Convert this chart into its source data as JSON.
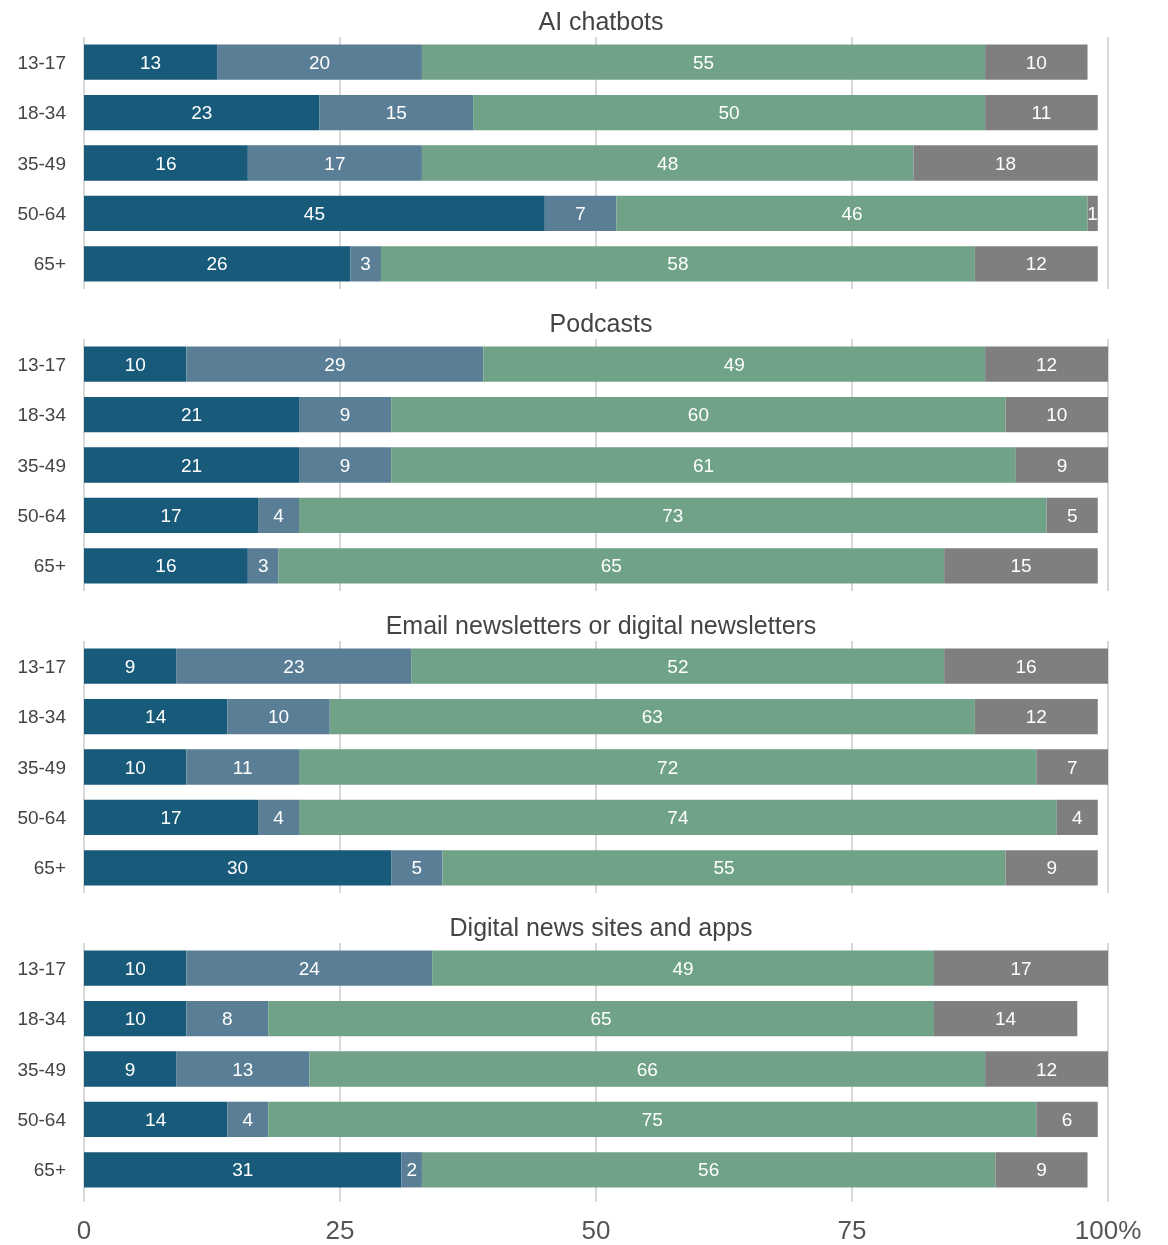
{
  "chart_data": [
    {
      "type": "bar",
      "title": "AI chatbots",
      "orientation": "horizontal",
      "stacked": true,
      "data_labels": true,
      "grid": "x",
      "tick_labels": "y",
      "xlim": [
        0,
        100
      ],
      "xticks": [
        0,
        25,
        50,
        75,
        100
      ],
      "categories": [
        "13-17",
        "18-34",
        "35-49",
        "50-64",
        "65+"
      ],
      "series": [
        {
          "color": "#185a7a",
          "values": [
            13,
            23,
            16,
            45,
            26
          ]
        },
        {
          "color": "#5a7e95",
          "values": [
            20,
            15,
            17,
            7,
            3
          ]
        },
        {
          "color": "#6fa287",
          "values": [
            55,
            50,
            48,
            46,
            58
          ]
        },
        {
          "color": "#7f7f7f",
          "values": [
            10,
            11,
            18,
            1,
            12
          ]
        }
      ]
    },
    {
      "type": "bar",
      "title": "Podcasts",
      "orientation": "horizontal",
      "stacked": true,
      "data_labels": true,
      "grid": "x",
      "tick_labels": "y",
      "xlim": [
        0,
        100
      ],
      "xticks": [
        0,
        25,
        50,
        75,
        100
      ],
      "categories": [
        "13-17",
        "18-34",
        "35-49",
        "50-64",
        "65+"
      ],
      "series": [
        {
          "color": "#185a7a",
          "values": [
            10,
            21,
            21,
            17,
            16
          ]
        },
        {
          "color": "#5a7e95",
          "values": [
            29,
            9,
            9,
            4,
            3
          ]
        },
        {
          "color": "#6fa287",
          "values": [
            49,
            60,
            61,
            73,
            65
          ]
        },
        {
          "color": "#7f7f7f",
          "values": [
            12,
            10,
            9,
            5,
            15
          ]
        }
      ]
    },
    {
      "type": "bar",
      "title": "Email newsletters or digital newsletters",
      "orientation": "horizontal",
      "stacked": true,
      "data_labels": true,
      "grid": "x",
      "tick_labels": "y",
      "xlim": [
        0,
        100
      ],
      "xticks": [
        0,
        25,
        50,
        75,
        100
      ],
      "categories": [
        "13-17",
        "18-34",
        "35-49",
        "50-64",
        "65+"
      ],
      "series": [
        {
          "color": "#185a7a",
          "values": [
            9,
            14,
            10,
            17,
            30
          ]
        },
        {
          "color": "#5a7e95",
          "values": [
            23,
            10,
            11,
            4,
            5
          ]
        },
        {
          "color": "#6fa287",
          "values": [
            52,
            63,
            72,
            74,
            55
          ]
        },
        {
          "color": "#7f7f7f",
          "values": [
            16,
            12,
            7,
            4,
            9
          ]
        }
      ]
    },
    {
      "type": "bar",
      "title": "Digital news sites and apps",
      "orientation": "horizontal",
      "stacked": true,
      "data_labels": true,
      "grid": "x",
      "xlim": [
        0,
        100
      ],
      "xticks": [
        0,
        25,
        50,
        75,
        {
          "value": 100,
          "label": "100%"
        }
      ],
      "categories": [
        "13-17",
        "18-34",
        "35-49",
        "50-64",
        "65+"
      ],
      "series": [
        {
          "color": "#185a7a",
          "values": [
            10,
            10,
            9,
            14,
            31
          ]
        },
        {
          "color": "#5a7e95",
          "values": [
            24,
            8,
            13,
            4,
            2
          ]
        },
        {
          "color": "#6fa287",
          "values": [
            49,
            65,
            66,
            75,
            56
          ]
        },
        {
          "color": "#7f7f7f",
          "values": [
            17,
            14,
            12,
            6,
            9
          ]
        }
      ]
    }
  ]
}
